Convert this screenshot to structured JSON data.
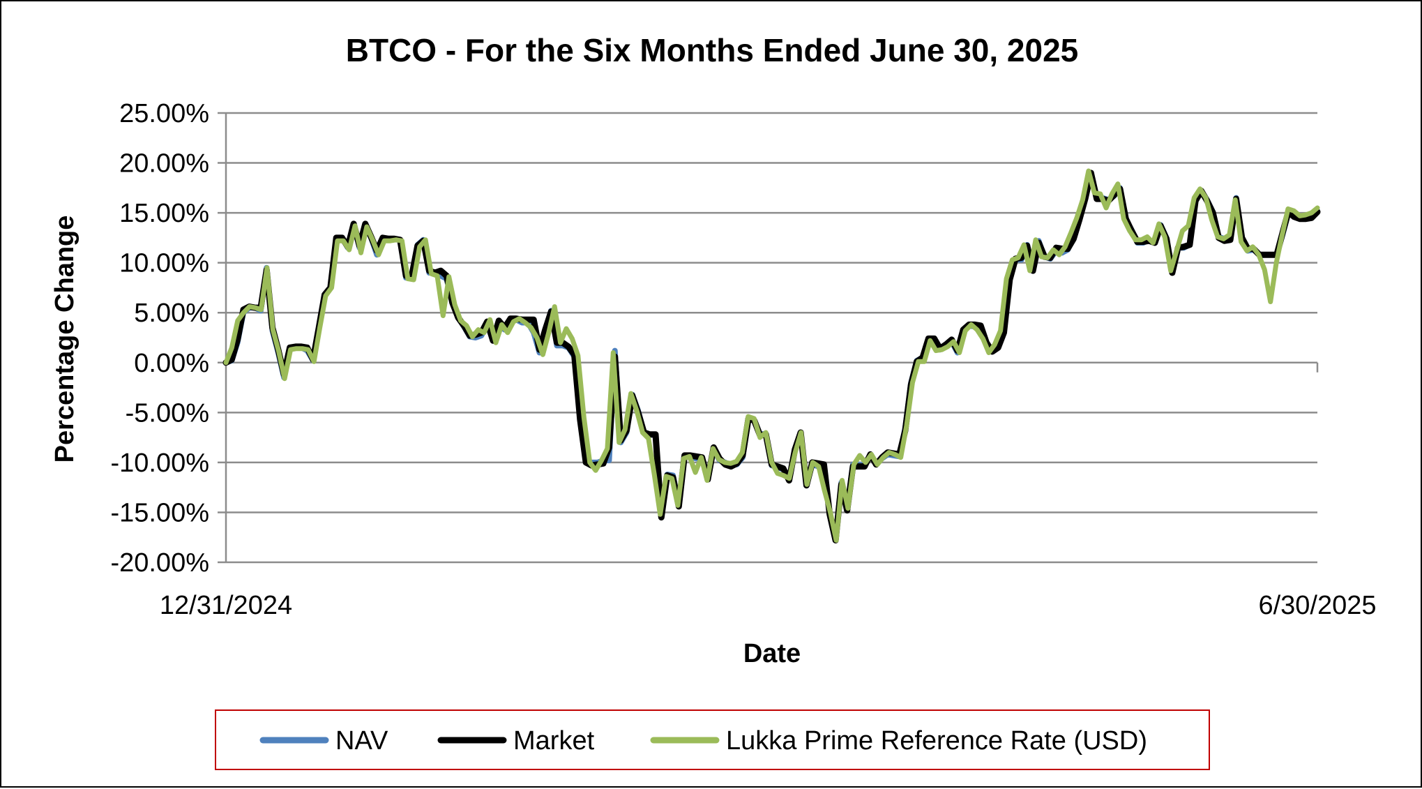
{
  "chart_data": {
    "type": "line",
    "title": "BTCO - For the Six Months Ended June 30, 2025",
    "xlabel": "Date",
    "ylabel": "Percentage Change",
    "x_tick_labels": [
      "12/31/2024",
      "6/30/2025"
    ],
    "y_tick_labels": [
      "25.00%",
      "20.00%",
      "15.00%",
      "10.00%",
      "5.00%",
      "0.00%",
      "-5.00%",
      "-10.00%",
      "-15.00%",
      "-20.00%"
    ],
    "ylim": [
      -20,
      25
    ],
    "y_ticks": [
      25,
      20,
      15,
      10,
      5,
      0,
      -5,
      -10,
      -15,
      -20
    ],
    "grid": true,
    "legend_position": "bottom",
    "series": [
      {
        "name": "NAV",
        "color": "#4F81BD",
        "values": [
          0,
          0.2,
          2,
          5,
          5.5,
          5.5,
          5.2,
          9.5,
          3.2,
          1,
          -1.5,
          1.3,
          1.5,
          1.5,
          1.2,
          0.2,
          3.5,
          6.8,
          7.5,
          12.5,
          12.5,
          11.5,
          13.8,
          11.5,
          13.8,
          12.5,
          10.8,
          12.5,
          12.4,
          12.4,
          12.3,
          8.5,
          8.4,
          11.8,
          12.3,
          9,
          9,
          8.7,
          8.4,
          6,
          4.5,
          3.6,
          2.6,
          2.5,
          2.7,
          3.8,
          2.2,
          3.8,
          3.3,
          4.2,
          4.3,
          4,
          4,
          3,
          1,
          3,
          5.2,
          1.7,
          1.7,
          1.5,
          0.6,
          -5.5,
          -10,
          -10,
          -10,
          -9.8,
          -9.8,
          1.2,
          -8,
          -7,
          -3.2,
          -4.8,
          -7,
          -7.2,
          -7.3,
          -15.3,
          -11.2,
          -11.3,
          -14.2,
          -9.4,
          -9.5,
          -9.6,
          -9.7,
          -11.5,
          -8.7,
          -9.8,
          -10,
          -10.3,
          -10.2,
          -9.5,
          -5.6,
          -5.8,
          -7.2,
          -7.1,
          -10.3,
          -10.5,
          -10.7,
          -11.7,
          -8.7,
          -7.1,
          -12.2,
          -10.2,
          -10.4,
          -10.6,
          -15,
          -17.5,
          -12,
          -14.5,
          -10.2,
          -10.2,
          -10.3,
          -9.3,
          -10,
          -9.6,
          -9.2,
          -9.3,
          -9.4,
          -6.5,
          -2,
          0.2,
          0.5,
          2.2,
          2.2,
          1.3,
          1.7,
          2.1,
          1,
          3.3,
          3.7,
          3.6,
          3.5,
          1.8,
          1.2,
          1.7,
          3.2,
          8.5,
          10.3,
          10.3,
          11.8,
          9.3,
          12.2,
          10.6,
          10.4,
          11.2,
          11,
          11.3,
          12.5,
          14.3,
          16.5,
          19,
          16.6,
          16.5,
          16.3,
          16.7,
          17.5,
          14.3,
          13.3,
          12,
          12,
          12.3,
          12,
          13.8,
          12.5,
          9.2,
          11.5,
          11.5,
          11.8,
          16.3,
          17.2,
          16.3,
          15.1,
          12.6,
          12.4,
          12.3,
          16.5,
          12.3,
          11.2,
          11.3,
          10.8,
          10.8,
          10.8,
          10.8,
          12.8,
          15,
          14.8,
          14.5,
          14.5,
          14.6,
          15.2
        ]
      },
      {
        "name": "Market",
        "color": "#000000",
        "values": [
          0,
          0.3,
          2.3,
          5.3,
          5.6,
          5.5,
          5.5,
          9.3,
          3.5,
          1.3,
          -1.2,
          1.5,
          1.6,
          1.6,
          1.5,
          0.3,
          3.5,
          6.8,
          7.5,
          12.5,
          12.5,
          11.6,
          13.9,
          11.7,
          13.9,
          12.6,
          11.2,
          12.5,
          12.4,
          12.4,
          12.3,
          8.7,
          8.7,
          11.7,
          12.2,
          9.2,
          9,
          9.2,
          8.7,
          6,
          4.5,
          3.7,
          2.7,
          2.8,
          3,
          4.1,
          2.2,
          4.2,
          3.5,
          4.4,
          4.4,
          4.3,
          4.3,
          4.3,
          1.3,
          3.3,
          5.1,
          2,
          2,
          1.6,
          0.8,
          -5.7,
          -10,
          -10.3,
          -10.2,
          -10.1,
          -8.5,
          0.6,
          -7.8,
          -6.8,
          -3.3,
          -5,
          -7,
          -7.2,
          -7.2,
          -15.5,
          -11.3,
          -11.5,
          -14.4,
          -9.3,
          -9.3,
          -9.4,
          -9.5,
          -11.7,
          -8.5,
          -9.6,
          -10.2,
          -10.4,
          -10.1,
          -9.3,
          -5.6,
          -5.8,
          -7.3,
          -7.2,
          -10.2,
          -10.4,
          -10.6,
          -11.8,
          -8.7,
          -7,
          -12.3,
          -10,
          -10.1,
          -10.2,
          -15.2,
          -17.8,
          -12.2,
          -14.8,
          -10.4,
          -10.4,
          -10.4,
          -9.2,
          -10.2,
          -9.5,
          -9,
          -9.1,
          -9.2,
          -6.8,
          -2.2,
          0.1,
          0.5,
          2.4,
          2.4,
          1.4,
          1.8,
          2.3,
          1.2,
          3.3,
          3.8,
          3.8,
          3.7,
          2,
          1.1,
          1.5,
          3,
          8.3,
          10.4,
          10.5,
          11.7,
          9.2,
          12,
          10.6,
          10.5,
          11.5,
          11.4,
          11.4,
          12.4,
          14.3,
          16.4,
          19,
          16.4,
          16.4,
          16.2,
          16.8,
          17.4,
          14.4,
          13.2,
          12.1,
          12.1,
          12.2,
          12,
          13.7,
          12.4,
          9,
          11.5,
          11.6,
          11.8,
          16.2,
          17.2,
          16.2,
          15,
          12.5,
          12.2,
          12.3,
          16.4,
          12.5,
          11.4,
          11.4,
          10.8,
          10.8,
          10.8,
          10.8,
          13,
          15.1,
          14.6,
          14.4,
          14.4,
          14.5,
          15.1
        ]
      },
      {
        "name": "Lukka Prime Reference Rate (USD)",
        "color": "#9BBB59",
        "values": [
          0,
          1.5,
          4.2,
          5,
          5.6,
          5.5,
          5.3,
          9.5,
          3.3,
          1.1,
          -1.6,
          1.3,
          1.4,
          1.4,
          1.3,
          0.1,
          3.5,
          6.7,
          7.5,
          12.2,
          12.2,
          11.3,
          13.7,
          11,
          13.6,
          12.3,
          10.8,
          12.2,
          12.2,
          12.3,
          12.2,
          8.4,
          8.3,
          11.6,
          12.3,
          8.9,
          8.7,
          4.7,
          8.6,
          5.8,
          4.2,
          3.7,
          2.6,
          3.3,
          3,
          4.3,
          2,
          3.8,
          3,
          4.1,
          4.4,
          4,
          3.5,
          2.5,
          0.8,
          3,
          5.6,
          2,
          3.4,
          2.4,
          0.7,
          -5.5,
          -10,
          -10.8,
          -9.8,
          -8.6,
          1,
          -8,
          -6.7,
          -3.1,
          -4.8,
          -7,
          -7.6,
          -11.2,
          -15.2,
          -11.4,
          -11.6,
          -14.3,
          -9.6,
          -9.4,
          -11,
          -9.5,
          -11.8,
          -8.6,
          -9.7,
          -10,
          -10.1,
          -9.9,
          -9,
          -5.4,
          -5.6,
          -7.5,
          -7,
          -10,
          -11.1,
          -11.3,
          -11.6,
          -9,
          -7,
          -12.2,
          -10,
          -10.4,
          -12.8,
          -15,
          -17.8,
          -11.8,
          -14.6,
          -10.2,
          -9.3,
          -10,
          -9.2,
          -10.2,
          -9.5,
          -9,
          -9.2,
          -9.5,
          -6.3,
          -2,
          0.1,
          0.1,
          2.2,
          1.2,
          1.3,
          1.6,
          2.1,
          1,
          3.2,
          3.8,
          3.3,
          2.4,
          1,
          1.8,
          3.2,
          8.4,
          10.3,
          10.5,
          11.8,
          9.2,
          12.3,
          10.6,
          10.5,
          11.3,
          10.8,
          11.6,
          13,
          14.5,
          16.3,
          19.2,
          17,
          16.9,
          15.5,
          16.9,
          17.9,
          14.4,
          13.2,
          12.3,
          12.3,
          12.6,
          12,
          13.9,
          12.6,
          9.2,
          11.2,
          13.2,
          13.7,
          16.5,
          17.4,
          16.5,
          14.3,
          12.6,
          12.4,
          12.8,
          16.3,
          12.1,
          11.2,
          11.6,
          10.8,
          9.3,
          6.1,
          10,
          12.8,
          15.4,
          15.2,
          14.7,
          14.8,
          15,
          15.5
        ]
      }
    ]
  }
}
